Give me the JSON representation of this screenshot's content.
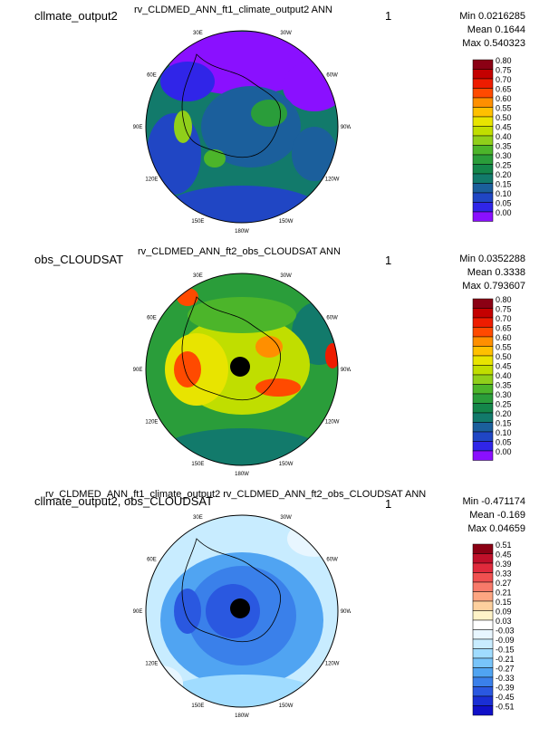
{
  "chart_data": [
    {
      "type": "heatmap",
      "projection": "polar-stereographic",
      "left_title": "cllmate_output2",
      "title": "rv_CLDMED_ANN_ft1_climate_output2  ANN",
      "right_title": "1",
      "stats": {
        "min": "Min 0.0216285",
        "mean": "Mean 0.1644",
        "max": "Max 0.540323"
      },
      "colorbar": {
        "levels": [
          "0.80",
          "0.75",
          "0.70",
          "0.65",
          "0.60",
          "0.55",
          "0.50",
          "0.45",
          "0.40",
          "0.35",
          "0.30",
          "0.25",
          "0.20",
          "0.15",
          "0.10",
          "0.05",
          "0.00"
        ],
        "colors": [
          "#8b0014",
          "#c40000",
          "#ee1c00",
          "#ff4a00",
          "#ff8f00",
          "#ffc000",
          "#e8e400",
          "#c0de00",
          "#90cf1a",
          "#4cb52a",
          "#2a9d3a",
          "#14864a",
          "#127a6b",
          "#1b5f9c",
          "#2046c4",
          "#3025e8",
          "#8a10ff"
        ]
      },
      "lon_labels": [
        "30E",
        "30W",
        "60E",
        "60W",
        "90E",
        "90W",
        "120E",
        "120W",
        "150E",
        "150W",
        "180W"
      ],
      "stats_values": {
        "min": 0.0216285,
        "mean": 0.1644,
        "max": 0.540323
      }
    },
    {
      "type": "heatmap",
      "projection": "polar-stereographic",
      "left_title": "obs_CLOUDSAT",
      "title": "rv_CLDMED_ANN_ft2_obs_CLOUDSAT  ANN",
      "right_title": "1",
      "stats": {
        "min": "Min 0.0352288",
        "mean": "Mean 0.3338",
        "max": "Max 0.793607"
      },
      "colorbar": {
        "levels": [
          "0.80",
          "0.75",
          "0.70",
          "0.65",
          "0.60",
          "0.55",
          "0.50",
          "0.45",
          "0.40",
          "0.35",
          "0.30",
          "0.25",
          "0.20",
          "0.15",
          "0.10",
          "0.05",
          "0.00"
        ],
        "colors": [
          "#8b0014",
          "#c40000",
          "#ee1c00",
          "#ff4a00",
          "#ff8f00",
          "#ffc000",
          "#e8e400",
          "#c0de00",
          "#90cf1a",
          "#4cb52a",
          "#2a9d3a",
          "#14864a",
          "#127a6b",
          "#1b5f9c",
          "#2046c4",
          "#3025e8",
          "#8a10ff"
        ]
      },
      "lon_labels": [
        "30E",
        "30W",
        "60E",
        "60W",
        "90E",
        "90W",
        "120E",
        "120W",
        "150E",
        "150W",
        "180W"
      ],
      "stats_values": {
        "min": 0.0352288,
        "mean": 0.3338,
        "max": 0.793607
      }
    },
    {
      "type": "heatmap",
      "projection": "polar-stereographic",
      "left_title": "cllmate_output2, obs_CLOUDSAT",
      "title": "rv_CLDMED_ANN_ft1_climate_output2  rv_CLDMED_ANN_ft2_obs_CLOUDSAT  ANN",
      "right_title": "1",
      "stats": {
        "min": "Min -0.471174",
        "mean": "Mean -0.169",
        "max": "Max 0.04659"
      },
      "colorbar": {
        "levels": [
          "0.51",
          "0.45",
          "0.39",
          "0.33",
          "0.27",
          "0.21",
          "0.15",
          "0.09",
          "0.03",
          "-0.03",
          "-0.09",
          "-0.15",
          "-0.21",
          "-0.27",
          "-0.33",
          "-0.39",
          "-0.45",
          "-0.51"
        ],
        "colors": [
          "#8b0014",
          "#c0102a",
          "#e02a3c",
          "#f05050",
          "#f87a6a",
          "#fda682",
          "#fdd09e",
          "#fff3c8",
          "#ffffff",
          "#e8f6ff",
          "#c8ecff",
          "#a0dcff",
          "#78c4fa",
          "#50a4f2",
          "#3a80ea",
          "#2a58e0",
          "#1a2fd4",
          "#1010c8"
        ]
      },
      "lon_labels": [
        "30E",
        "30W",
        "60E",
        "60W",
        "90E",
        "90W",
        "120E",
        "120W",
        "150E",
        "150W",
        "180W"
      ],
      "stats_values": {
        "min": -0.471174,
        "mean": -0.169,
        "max": 0.04659
      }
    }
  ]
}
